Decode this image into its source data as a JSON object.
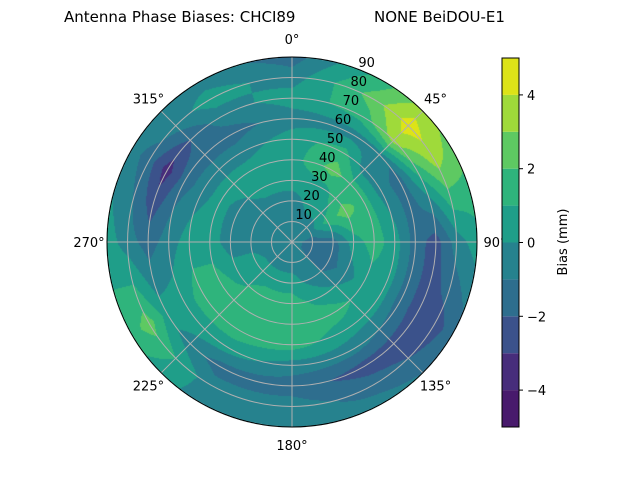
{
  "title_left": "Antenna Phase Biases: CHCI89",
  "title_right": "NONE BeiDOU-E1",
  "chart_data": {
    "type": "heatmap",
    "projection": "polar",
    "theta_zero": "north",
    "theta_direction": "clockwise",
    "theta_tick_labels": [
      "0°",
      "45°",
      "90°",
      "135°",
      "180°",
      "225°",
      "270°",
      "315°"
    ],
    "theta_ticks": [
      0,
      45,
      90,
      135,
      180,
      225,
      270,
      315
    ],
    "r_tick_labels": [
      "10",
      "20",
      "30",
      "40",
      "50",
      "60",
      "70",
      "80",
      "90"
    ],
    "r_ticks": [
      10,
      20,
      30,
      40,
      50,
      60,
      70,
      80,
      90
    ],
    "rlim": [
      0,
      90
    ],
    "grid": true,
    "azimuth": [
      0,
      30,
      45,
      60,
      90,
      120,
      150,
      180,
      210,
      240,
      270,
      300,
      330
    ],
    "zenith": [
      0,
      10,
      20,
      30,
      40,
      50,
      60,
      70,
      80,
      90
    ],
    "values": [
      [
        -0.5,
        -0.5,
        -0.5,
        0.5,
        0.5,
        0.5,
        -0.5,
        0.5,
        -0.5,
        -1.5
      ],
      [
        -0.5,
        -0.5,
        0.5,
        0.5,
        2.5,
        1.5,
        -0.5,
        1.5,
        2.5,
        1.5
      ],
      [
        -0.5,
        -0.5,
        0.5,
        1.5,
        1.5,
        -0.5,
        -0.5,
        3.5,
        4.5,
        3.5
      ],
      [
        -0.5,
        -0.5,
        1.5,
        2.5,
        1.5,
        -0.5,
        -1.5,
        1.5,
        3.5,
        2.5
      ],
      [
        -0.5,
        -1.5,
        -1.5,
        0.5,
        1.5,
        0.5,
        -1.5,
        -2.5,
        -0.5,
        0.5
      ],
      [
        -0.5,
        -1.5,
        -1.5,
        -0.5,
        0.5,
        0.5,
        -1.5,
        -2.5,
        -2.5,
        -1.5
      ],
      [
        -0.5,
        -0.5,
        -0.5,
        0.5,
        1.5,
        0.5,
        -0.5,
        -2.5,
        -1.5,
        -0.5
      ],
      [
        -0.5,
        -0.5,
        0.5,
        1.5,
        1.5,
        1.5,
        -0.5,
        -1.5,
        -0.5,
        -0.5
      ],
      [
        -0.5,
        -0.5,
        0.5,
        1.5,
        1.5,
        1.5,
        0.5,
        -1.5,
        -0.5,
        -0.5
      ],
      [
        -0.5,
        -0.5,
        0.5,
        0.5,
        1.5,
        1.5,
        0.5,
        0.5,
        2.5,
        1.5
      ],
      [
        -0.5,
        -0.5,
        -0.5,
        -0.5,
        0.5,
        0.5,
        -0.5,
        -1.5,
        -0.5,
        0.5
      ],
      [
        -0.5,
        -0.5,
        -0.5,
        -0.5,
        0.5,
        -0.5,
        -1.5,
        -3.5,
        -1.5,
        -0.5
      ],
      [
        -0.5,
        -0.5,
        -0.5,
        0.5,
        0.5,
        -0.5,
        -1.5,
        -0.5,
        0.5,
        -0.5
      ]
    ],
    "colorbar": {
      "label": "Bias (mm)",
      "levels": [
        -5,
        -4,
        -3,
        -2,
        -1,
        0,
        1,
        2,
        3,
        4,
        5
      ],
      "ticks": [
        -4,
        -2,
        0,
        2,
        4
      ],
      "tick_labels": [
        "−4",
        "−2",
        "0",
        "2",
        "4"
      ],
      "colormap": "viridis",
      "colors": [
        "#481a6c",
        "#472d7b",
        "#3b528b",
        "#2e6e8e",
        "#26828e",
        "#1f9e89",
        "#2fb47c",
        "#5ec962",
        "#9fda3a",
        "#dde318"
      ]
    }
  }
}
